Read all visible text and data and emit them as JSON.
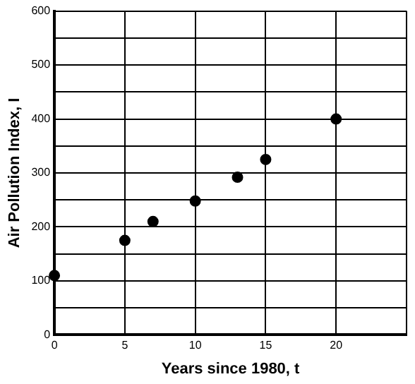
{
  "chart_data": {
    "type": "scatter",
    "xlabel": "Years since 1980, t",
    "ylabel": "Air Pollution Index, I",
    "x": [
      0,
      5,
      7,
      10,
      13,
      15,
      20
    ],
    "series": [
      {
        "color": "#000000",
        "values": [
          110,
          175,
          210,
          248,
          292,
          325,
          400
        ]
      }
    ],
    "xlim": [
      0,
      25
    ],
    "xticks": [
      0,
      5,
      10,
      15,
      20,
      {
        "value": 25,
        "label": null
      }
    ],
    "ylim": [
      0,
      600
    ],
    "yticks": [
      0,
      {
        "value": 50,
        "label": null
      },
      100,
      {
        "value": 150,
        "label": null
      },
      200,
      {
        "value": 250,
        "label": null
      },
      300,
      {
        "value": 350,
        "label": null
      },
      400,
      {
        "value": 450,
        "label": null
      },
      500,
      {
        "value": 550,
        "label": null
      },
      600
    ],
    "grid": true,
    "marker": "circle",
    "legend": false
  }
}
